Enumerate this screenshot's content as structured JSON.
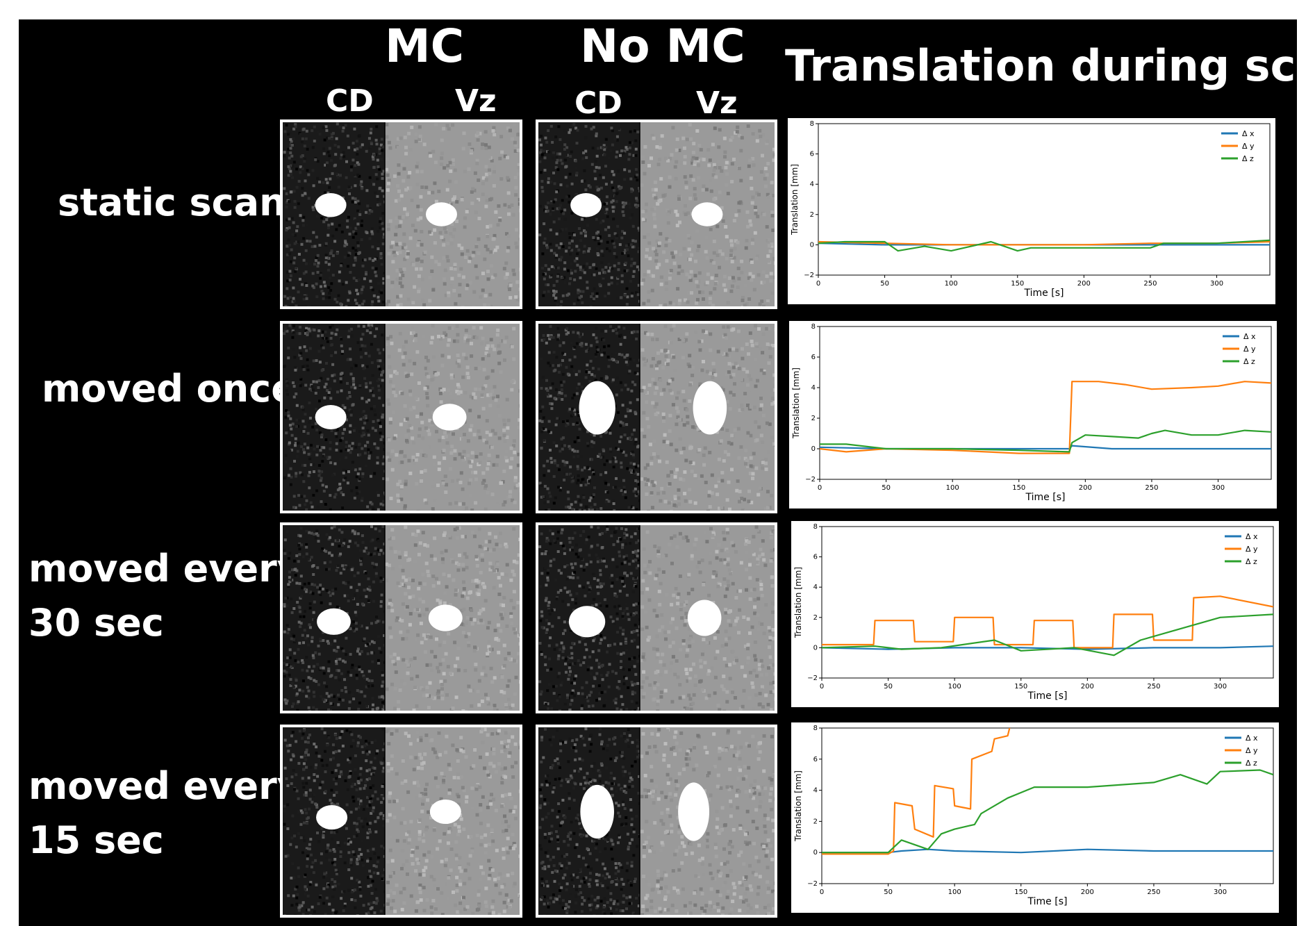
{
  "headers": {
    "mc": "MC",
    "nomc": "No MC",
    "translation": "Translation during scan",
    "cd_mc": "CD",
    "vz_mc": "Vz",
    "cd_nomc": "CD",
    "vz_nomc": "Vz"
  },
  "rows": [
    {
      "label_lines": [
        "static scan"
      ]
    },
    {
      "label_lines": [
        "moved once"
      ]
    },
    {
      "label_lines": [
        "moved every",
        "30 sec"
      ]
    },
    {
      "label_lines": [
        "moved every",
        "15 sec"
      ]
    }
  ],
  "colors": {
    "dx": "#1f77b4",
    "dy": "#ff7f0e",
    "dz": "#2ca02c"
  },
  "chart_data": [
    {
      "type": "line",
      "title": "static scan",
      "xlabel": "Time [s]",
      "ylabel": "Translation [mm]",
      "xlim": [
        0,
        340
      ],
      "ylim": [
        -2,
        8
      ],
      "xticks": [
        0,
        50,
        100,
        150,
        200,
        250,
        300
      ],
      "yticks": [
        -2,
        0,
        2,
        4,
        6,
        8
      ],
      "legend_position": "top-right",
      "series": [
        {
          "name": "Δ x",
          "x": [
            0,
            50,
            100,
            150,
            200,
            250,
            300,
            340
          ],
          "y": [
            0.1,
            0.0,
            0.0,
            0.0,
            0.0,
            0.0,
            0.0,
            0.0
          ]
        },
        {
          "name": "Δ y",
          "x": [
            0,
            50,
            100,
            150,
            200,
            250,
            300,
            340
          ],
          "y": [
            0.2,
            0.1,
            0.0,
            0.0,
            0.0,
            0.1,
            0.1,
            0.2
          ]
        },
        {
          "name": "Δ z",
          "x": [
            0,
            20,
            50,
            60,
            80,
            100,
            130,
            150,
            160,
            200,
            250,
            260,
            300,
            340
          ],
          "y": [
            0.1,
            0.2,
            0.2,
            -0.4,
            -0.1,
            -0.4,
            0.2,
            -0.4,
            -0.2,
            -0.2,
            -0.2,
            0.1,
            0.1,
            0.3
          ]
        }
      ]
    },
    {
      "type": "line",
      "title": "moved once",
      "xlabel": "Time [s]",
      "ylabel": "Translation [mm]",
      "xlim": [
        0,
        340
      ],
      "ylim": [
        -2,
        8
      ],
      "xticks": [
        0,
        50,
        100,
        150,
        200,
        250,
        300
      ],
      "yticks": [
        -2,
        0,
        2,
        4,
        6,
        8
      ],
      "legend_position": "top-right",
      "series": [
        {
          "name": "Δ x",
          "x": [
            0,
            50,
            100,
            150,
            188,
            190,
            220,
            250,
            300,
            340
          ],
          "y": [
            0.1,
            0.0,
            0.0,
            0.0,
            0.0,
            0.2,
            0.0,
            0.0,
            0.0,
            0.0
          ]
        },
        {
          "name": "Δ y",
          "x": [
            0,
            20,
            50,
            100,
            150,
            180,
            188,
            190,
            210,
            230,
            250,
            280,
            300,
            320,
            340
          ],
          "y": [
            0.0,
            -0.2,
            0.0,
            -0.1,
            -0.3,
            -0.3,
            -0.3,
            4.4,
            4.4,
            4.2,
            3.9,
            4.0,
            4.1,
            4.4,
            4.3
          ]
        },
        {
          "name": "Δ z",
          "x": [
            0,
            20,
            50,
            100,
            150,
            188,
            190,
            200,
            220,
            240,
            250,
            260,
            280,
            300,
            320,
            340
          ],
          "y": [
            0.3,
            0.3,
            0.0,
            0.0,
            -0.1,
            -0.2,
            0.4,
            0.9,
            0.8,
            0.7,
            1.0,
            1.2,
            0.9,
            0.9,
            1.2,
            1.1
          ]
        }
      ]
    },
    {
      "type": "line",
      "title": "moved every 30 sec",
      "xlabel": "Time [s]",
      "ylabel": "Translation [mm]",
      "xlim": [
        0,
        340
      ],
      "ylim": [
        -2,
        8
      ],
      "xticks": [
        0,
        50,
        100,
        150,
        200,
        250,
        300
      ],
      "yticks": [
        -2,
        0,
        2,
        4,
        6,
        8
      ],
      "legend_position": "top-right",
      "series": [
        {
          "name": "Δ x",
          "x": [
            0,
            50,
            100,
            150,
            200,
            250,
            300,
            340
          ],
          "y": [
            0.0,
            -0.1,
            0.0,
            0.0,
            -0.1,
            0.0,
            0.0,
            0.1
          ]
        },
        {
          "name": "Δ y",
          "x": [
            0,
            39,
            40,
            69,
            70,
            99,
            100,
            129,
            130,
            159,
            160,
            189,
            190,
            219,
            220,
            249,
            250,
            279,
            280,
            300,
            340
          ],
          "y": [
            0.2,
            0.2,
            1.8,
            1.8,
            0.4,
            0.4,
            2.0,
            2.0,
            0.2,
            0.2,
            1.8,
            1.8,
            0.0,
            0.0,
            2.2,
            2.2,
            0.5,
            0.5,
            3.3,
            3.4,
            2.7
          ]
        },
        {
          "name": "Δ z",
          "x": [
            0,
            40,
            60,
            90,
            130,
            150,
            190,
            220,
            240,
            260,
            280,
            300,
            340
          ],
          "y": [
            0.0,
            0.1,
            -0.1,
            0.0,
            0.5,
            -0.2,
            0.0,
            -0.5,
            0.5,
            1.0,
            1.5,
            2.0,
            2.2
          ]
        }
      ]
    },
    {
      "type": "line",
      "title": "moved every 15 sec",
      "xlabel": "Time [s]",
      "ylabel": "Translation [mm]",
      "xlim": [
        0,
        340
      ],
      "ylim": [
        -2,
        8
      ],
      "xticks": [
        0,
        50,
        100,
        150,
        200,
        250,
        300
      ],
      "yticks": [
        -2,
        0,
        2,
        4,
        6,
        8
      ],
      "legend_position": "top-right",
      "series": [
        {
          "name": "Δ x",
          "x": [
            0,
            50,
            60,
            80,
            100,
            150,
            200,
            250,
            300,
            340
          ],
          "y": [
            0.0,
            0.0,
            0.1,
            0.2,
            0.1,
            0.0,
            0.2,
            0.1,
            0.1,
            0.1
          ]
        },
        {
          "name": "Δ y",
          "x": [
            0,
            50,
            54,
            55,
            68,
            70,
            84,
            85,
            99,
            100,
            112,
            113,
            128,
            130,
            140,
            142,
            147,
            150
          ],
          "y": [
            -0.1,
            -0.1,
            0.1,
            3.2,
            3.0,
            1.5,
            1.0,
            4.3,
            4.1,
            3.0,
            2.8,
            6.0,
            6.5,
            7.3,
            7.5,
            8.2,
            8.3,
            8.6
          ]
        },
        {
          "name": "Δ z",
          "x": [
            0,
            50,
            60,
            80,
            90,
            100,
            115,
            120,
            140,
            160,
            200,
            250,
            270,
            290,
            300,
            330,
            340
          ],
          "y": [
            0.0,
            0.0,
            0.8,
            0.2,
            1.2,
            1.5,
            1.8,
            2.5,
            3.5,
            4.2,
            4.2,
            4.5,
            5.0,
            4.4,
            5.2,
            5.3,
            5.0
          ]
        }
      ]
    }
  ]
}
